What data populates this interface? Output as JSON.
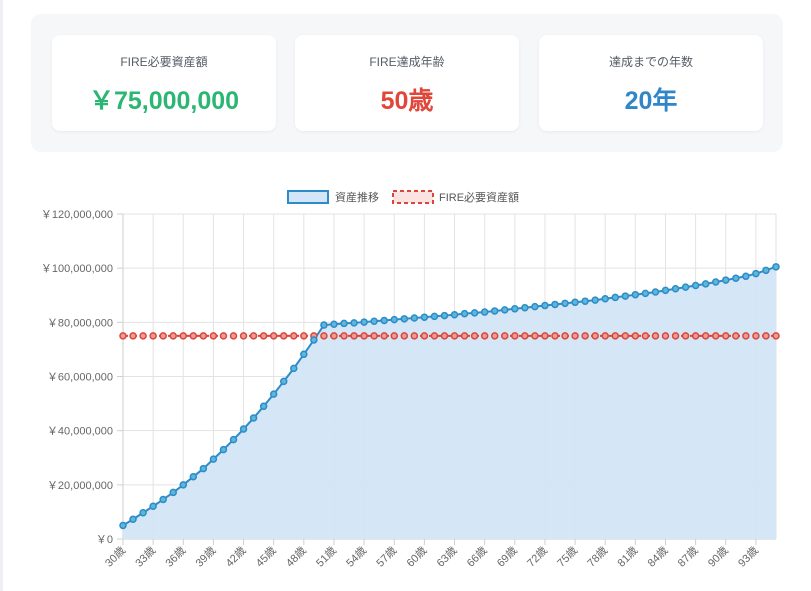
{
  "summary": {
    "required_assets": {
      "label": "FIRE必要資産額",
      "value": "￥75,000,000"
    },
    "fire_age": {
      "label": "FIRE達成年齢",
      "value": "50歳"
    },
    "years_to_fire": {
      "label": "達成までの年数",
      "value": "20年"
    }
  },
  "colors": {
    "green": "#2bb673",
    "red": "#e0463a",
    "blue": "#2f86c9",
    "series_line": "#2e8bc9",
    "series_fill": "#d3e6f7",
    "series_point": "#5bb8d8",
    "target_line": "#d9473c"
  },
  "chart_data": {
    "type": "line",
    "title": "",
    "xlabel": "",
    "ylabel": "",
    "ylim": [
      0,
      120000000
    ],
    "y_ticks": [
      0,
      20000000,
      40000000,
      60000000,
      80000000,
      100000000,
      120000000
    ],
    "y_tick_labels": [
      "￥0",
      "￥20,000,000",
      "￥40,000,000",
      "￥60,000,000",
      "￥80,000,000",
      "￥100,000,000",
      "￥120,000,000"
    ],
    "x": [
      30,
      31,
      32,
      33,
      34,
      35,
      36,
      37,
      38,
      39,
      40,
      41,
      42,
      43,
      44,
      45,
      46,
      47,
      48,
      49,
      50,
      51,
      52,
      53,
      54,
      55,
      56,
      57,
      58,
      59,
      60,
      61,
      62,
      63,
      64,
      65,
      66,
      67,
      68,
      69,
      70,
      71,
      72,
      73,
      74,
      75,
      76,
      77,
      78,
      79,
      80,
      81,
      82,
      83,
      84,
      85,
      86,
      87,
      88,
      89,
      90,
      91,
      92,
      93,
      94,
      95
    ],
    "x_tick_labels": [
      "30歳",
      "33歳",
      "36歳",
      "39歳",
      "42歳",
      "45歳",
      "48歳",
      "51歳",
      "54歳",
      "57歳",
      "60歳",
      "63歳",
      "66歳",
      "69歳",
      "72歳",
      "75歳",
      "78歳",
      "81歳",
      "84歳",
      "87歳",
      "90歳",
      "93歳"
    ],
    "grid": true,
    "legend_position": "top-center",
    "series": [
      {
        "name": "資産推移",
        "type": "area",
        "values": [
          5000000,
          7300000,
          9700000,
          12100000,
          14600000,
          17200000,
          20000000,
          23000000,
          26000000,
          29500000,
          33000000,
          36700000,
          40600000,
          44700000,
          49000000,
          53500000,
          58200000,
          63000000,
          68200000,
          73500000,
          79000000,
          79300000,
          79600000,
          79800000,
          80100000,
          80400000,
          80700000,
          81000000,
          81300000,
          81600000,
          81900000,
          82200000,
          82500000,
          82800000,
          83200000,
          83500000,
          83800000,
          84200000,
          84600000,
          85000000,
          85400000,
          85800000,
          86200000,
          86600000,
          87000000,
          87400000,
          87800000,
          88200000,
          88700000,
          89200000,
          89700000,
          90200000,
          90700000,
          91200000,
          91800000,
          92400000,
          93000000,
          93600000,
          94200000,
          94900000,
          95600000,
          96300000,
          97000000,
          98000000,
          99200000,
          100500000
        ]
      },
      {
        "name": "FIRE必要資産額",
        "type": "line-dashed",
        "value": 75000000
      }
    ]
  }
}
